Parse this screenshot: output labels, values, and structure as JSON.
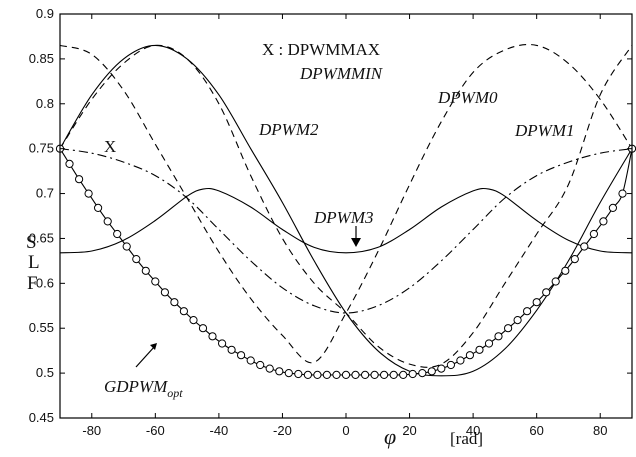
{
  "chart_data": {
    "type": "line",
    "title": "",
    "xlabel": "φ",
    "x_unit": "[rad]",
    "ylabel_letters": [
      "S",
      "L",
      "F"
    ],
    "xlim": [
      -90,
      90
    ],
    "ylim": [
      0.45,
      0.9
    ],
    "grid": false,
    "x_ticks": [
      "-80",
      "-60",
      "-40",
      "-20",
      "0",
      "20",
      "40",
      "60",
      "80"
    ],
    "y_ticks": [
      "0.45",
      "0.5",
      "0.55",
      "0.6",
      "0.65",
      "0.7",
      "0.75",
      "0.8",
      "0.85",
      "0.9"
    ],
    "series": [
      {
        "name": "DPWM2",
        "style": "solid",
        "x": [
          -90,
          -80,
          -70,
          -60,
          -50,
          -40,
          -30,
          -20,
          -10,
          0,
          10,
          20,
          30,
          40,
          50,
          60,
          70,
          80,
          90
        ],
        "y": [
          0.75,
          0.81,
          0.85,
          0.865,
          0.85,
          0.81,
          0.75,
          0.69,
          0.625,
          0.567,
          0.525,
          0.502,
          0.497,
          0.502,
          0.527,
          0.57,
          0.625,
          0.69,
          0.75
        ]
      },
      {
        "name": "DPWM0",
        "style": "dashed",
        "x": [
          -90,
          -80,
          -70,
          -60,
          -50,
          -40,
          -30,
          -20,
          -10,
          0,
          10,
          20,
          30,
          40,
          50,
          60,
          70,
          80,
          90
        ],
        "y": [
          0.865,
          0.855,
          0.815,
          0.755,
          0.695,
          0.635,
          0.583,
          0.542,
          0.512,
          0.567,
          0.635,
          0.71,
          0.78,
          0.835,
          0.86,
          0.865,
          0.845,
          0.805,
          0.75
        ]
      },
      {
        "name": "DPWM1",
        "style": "dashed",
        "x": [
          -90,
          -80,
          -70,
          -60,
          -50,
          -40,
          -30,
          -20,
          -10,
          0,
          10,
          20,
          30,
          40,
          50,
          60,
          70,
          80,
          90
        ],
        "y": [
          0.75,
          0.805,
          0.845,
          0.865,
          0.85,
          0.8,
          0.72,
          0.65,
          0.6,
          0.567,
          0.53,
          0.51,
          0.51,
          0.545,
          0.6,
          0.655,
          0.71,
          0.81,
          0.865
        ]
      },
      {
        "name": "DPWM3",
        "style": "solid",
        "x": [
          -90,
          -80,
          -70,
          -60,
          -50,
          -45,
          -40,
          -30,
          -20,
          -10,
          0,
          10,
          20,
          30,
          40,
          45,
          50,
          60,
          70,
          80,
          90
        ],
        "y": [
          0.634,
          0.636,
          0.648,
          0.67,
          0.697,
          0.705,
          0.703,
          0.685,
          0.66,
          0.64,
          0.634,
          0.64,
          0.66,
          0.685,
          0.703,
          0.705,
          0.697,
          0.67,
          0.648,
          0.636,
          0.634
        ]
      },
      {
        "name": "X",
        "style": "dashdot",
        "x": [
          -90,
          -80,
          -70,
          -60,
          -50,
          -40,
          -30,
          -20,
          -10,
          0,
          10,
          20,
          30,
          40,
          50,
          60,
          70,
          80,
          90
        ],
        "y": [
          0.75,
          0.745,
          0.735,
          0.72,
          0.695,
          0.66,
          0.625,
          0.595,
          0.575,
          0.567,
          0.575,
          0.595,
          0.625,
          0.66,
          0.695,
          0.72,
          0.735,
          0.745,
          0.75
        ]
      },
      {
        "name": "GDPWM_opt",
        "style": "solid-circles",
        "x": [
          -90,
          -87,
          -84,
          -81,
          -78,
          -75,
          -72,
          -69,
          -66,
          -63,
          -60,
          -57,
          -54,
          -51,
          -48,
          -45,
          -42,
          -39,
          -36,
          -33,
          -30,
          -27,
          -24,
          -21,
          -18,
          -15,
          -12,
          -9,
          -6,
          -3,
          0,
          3,
          6,
          9,
          12,
          15,
          18,
          21,
          24,
          27,
          30,
          33,
          36,
          39,
          42,
          45,
          48,
          51,
          54,
          57,
          60,
          63,
          66,
          69,
          72,
          75,
          78,
          81,
          84,
          87,
          90
        ],
        "y": [
          0.75,
          0.733,
          0.716,
          0.7,
          0.684,
          0.669,
          0.655,
          0.641,
          0.627,
          0.614,
          0.602,
          0.59,
          0.579,
          0.569,
          0.559,
          0.55,
          0.541,
          0.533,
          0.526,
          0.52,
          0.514,
          0.509,
          0.505,
          0.502,
          0.5,
          0.499,
          0.498,
          0.498,
          0.498,
          0.498,
          0.498,
          0.498,
          0.498,
          0.498,
          0.498,
          0.498,
          0.498,
          0.499,
          0.5,
          0.502,
          0.505,
          0.509,
          0.514,
          0.52,
          0.526,
          0.533,
          0.541,
          0.55,
          0.559,
          0.569,
          0.579,
          0.59,
          0.602,
          0.614,
          0.627,
          0.641,
          0.655,
          0.669,
          0.684,
          0.7,
          0.75
        ],
        "marker_every": 3
      }
    ],
    "annotations": [
      {
        "id": "x-legend-line1",
        "text": "X : DPWMMAX"
      },
      {
        "id": "x-legend-line2",
        "text": "DPWMMIN"
      },
      {
        "id": "label-dpwm0",
        "text": "DPWM0"
      },
      {
        "id": "label-dpwm2",
        "text": "DPWM2"
      },
      {
        "id": "label-dpwm1",
        "text": "DPWM1"
      },
      {
        "id": "label-x",
        "text": "X"
      },
      {
        "id": "label-dpwm3",
        "text": "DPWM3"
      },
      {
        "id": "label-gdpwm-base",
        "text": "GDPWM"
      },
      {
        "id": "label-gdpwm-sub",
        "text": "opt"
      }
    ]
  }
}
